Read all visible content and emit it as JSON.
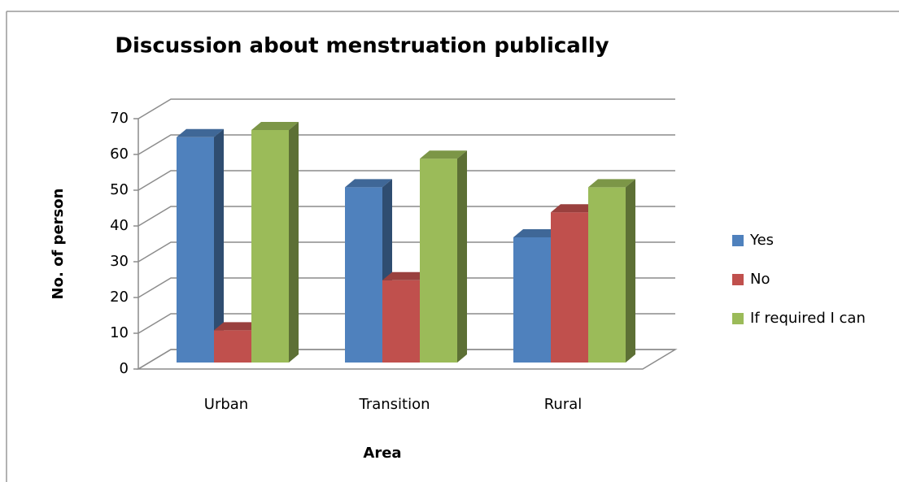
{
  "chart_data": {
    "type": "bar3d",
    "title": "Discussion about menstruation publically",
    "x_label": "Area",
    "y_label": "No. of person",
    "categories": [
      "Urban",
      "Transition",
      "Rural"
    ],
    "series": [
      {
        "name": "Yes",
        "color": "#4f81bd",
        "values": [
          63,
          49,
          35
        ]
      },
      {
        "name": "No",
        "color": "#c0504d",
        "values": [
          9,
          23,
          42
        ]
      },
      {
        "name": "If required I can",
        "color": "#9bbb59",
        "values": [
          65,
          57,
          49
        ]
      }
    ],
    "ylim": [
      0,
      70
    ],
    "yticks": [
      0,
      10,
      20,
      30,
      40,
      50,
      60,
      70
    ],
    "grid": true,
    "legend": "right"
  }
}
